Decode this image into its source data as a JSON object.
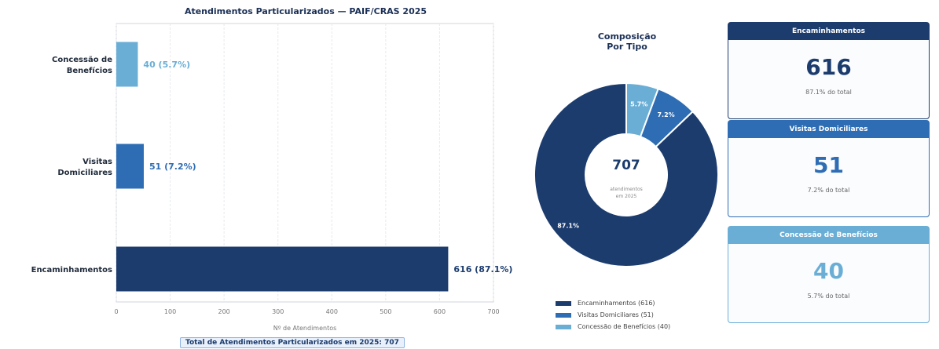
{
  "chart_data": [
    {
      "type": "bar",
      "orientation": "horizontal",
      "title": "Atendimentos Particularizados — PAIF/CRAS 2025",
      "xlabel": "Nº de Atendimentos",
      "xlim": [
        0,
        700
      ],
      "xticks": [
        0,
        100,
        200,
        300,
        400,
        500,
        600,
        700
      ],
      "grid": true,
      "categories": [
        "Concessão de Benefícios",
        "Visitas Domiciliares",
        "Encaminhamentos"
      ],
      "category_lines": [
        [
          "Concessão de",
          "Benefícios"
        ],
        [
          "Visitas",
          "Domiciliares"
        ],
        [
          "Encaminhamentos"
        ]
      ],
      "values": [
        40,
        51,
        616
      ],
      "data_labels": [
        "40  (5.7%)",
        "51  (7.2%)",
        "616  (87.1%)"
      ],
      "colors": [
        "#6aaed6",
        "#2e6db4",
        "#1c3c6e"
      ]
    },
    {
      "type": "pie",
      "donut": true,
      "title": "Composição\nPor Tipo",
      "labels": [
        "Encaminhamentos (616)",
        "Visitas Domiciliares (51)",
        "Concessão de Benefícios (40)"
      ],
      "values": [
        616,
        51,
        40
      ],
      "slice_labels": [
        "87.1%",
        "7.2%",
        "5.7%"
      ],
      "colors": [
        "#1c3c6e",
        "#2e6db4",
        "#6aaed6"
      ],
      "center_value": "707",
      "center_caption": [
        "atendimentos",
        "em 2025"
      ],
      "legend_position": "bottom"
    }
  ],
  "footnote": "Total de Atendimentos Particularizados em 2025: 707",
  "cards": [
    {
      "header": "Encaminhamentos",
      "value": "616",
      "caption": "87.1% do total",
      "color": "#1c3c6e"
    },
    {
      "header": "Visitas Domiciliares",
      "value": "51",
      "caption": "7.2% do total",
      "color": "#2e6db4"
    },
    {
      "header": "Concessão de Benefícios",
      "value": "40",
      "caption": "5.7% do total",
      "color": "#6aaed6"
    }
  ]
}
